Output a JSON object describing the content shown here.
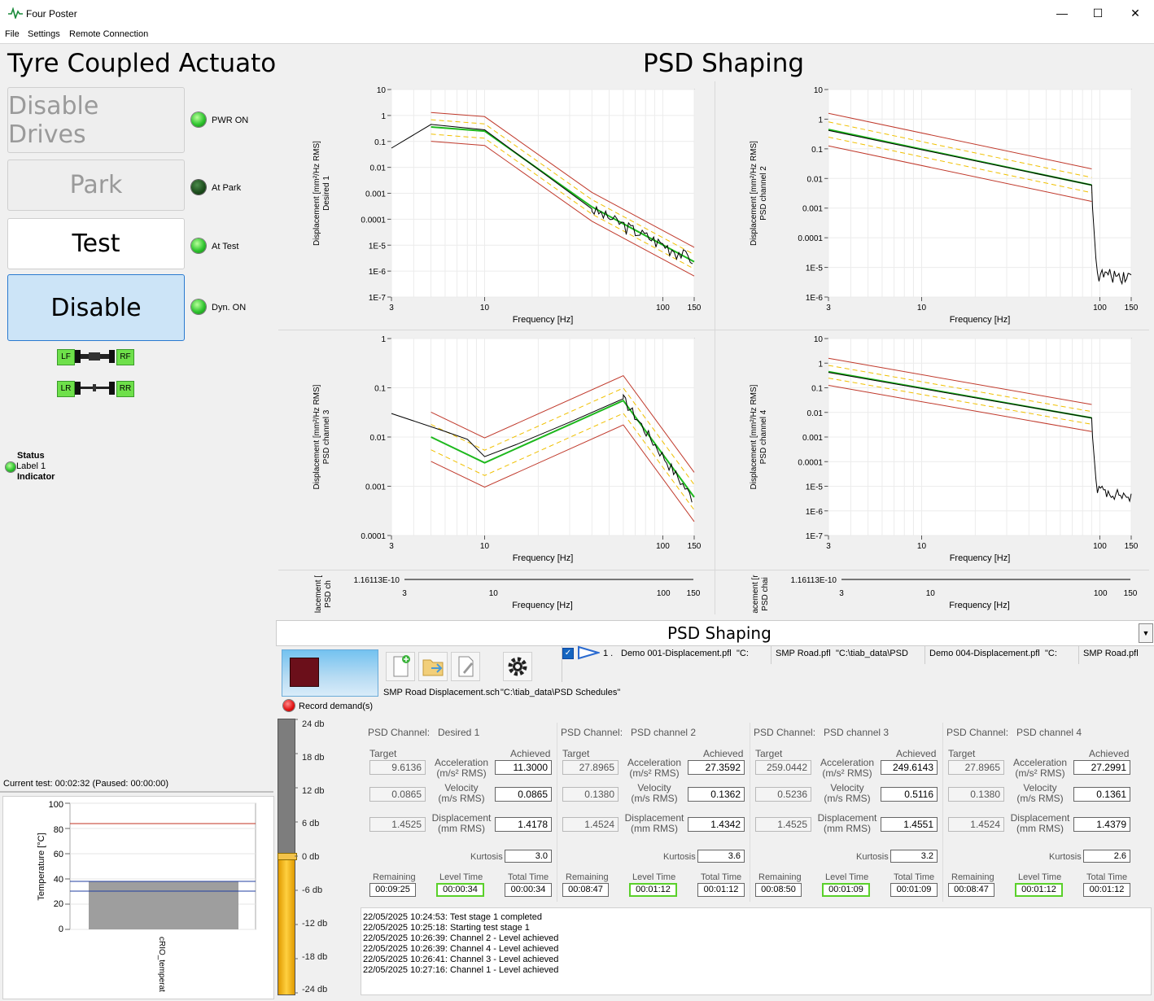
{
  "window": {
    "title": "Four Poster"
  },
  "menu": [
    "File",
    "Settings",
    "Remote Connection"
  ],
  "left": {
    "title": "Tyre Coupled Actuators",
    "buttons": [
      "Disable Drives",
      "Park",
      "Test",
      "Disable"
    ],
    "indicators": [
      {
        "label": "PWR ON",
        "state": "on"
      },
      {
        "label": "At Park",
        "state": "off"
      },
      {
        "label": "At Test",
        "state": "on"
      },
      {
        "label": "Dyn. ON",
        "state": "on"
      }
    ],
    "corners": {
      "lf": "LF",
      "rf": "RF",
      "lr": "LR",
      "rr": "RR"
    },
    "status": {
      "line1": "Status",
      "line2": "Label 1",
      "line3": "Indicator"
    },
    "current_test": "Current test: 00:02:32 (Paused: 00:00:00)",
    "temp_chart": {
      "ylabel": "Temperature [°C]",
      "xlabel": "cRIO_temperat",
      "yticks": [
        "100",
        "80",
        "60",
        "40",
        "20",
        "0"
      ]
    }
  },
  "main": {
    "title": "PSD Shaping",
    "section_title": "PSD Shaping",
    "xlabel": "Frequency [Hz]",
    "xticks": [
      "3",
      "10",
      "100",
      "150"
    ],
    "plots": [
      {
        "ylabel1": "Displacement [mm²/Hz RMS]",
        "ylabel2": "Desired 1",
        "yticks": [
          "10",
          "1",
          "0.1",
          "0.01",
          "0.001",
          "0.0001",
          "1E-5",
          "1E-6",
          "1E-7"
        ]
      },
      {
        "ylabel1": "Displacement [mm²/Hz RMS]",
        "ylabel2": "PSD channel 2",
        "yticks": [
          "10",
          "1",
          "0.1",
          "0.01",
          "0.001",
          "0.0001",
          "1E-5",
          "1E-6"
        ]
      },
      {
        "ylabel1": "Displacement [mm²/Hz RMS]",
        "ylabel2": "PSD channel 3",
        "yticks": [
          "1",
          "0.1",
          "0.01",
          "0.001",
          "0.0001"
        ]
      },
      {
        "ylabel1": "Displacement [mm²/Hz RMS]",
        "ylabel2": "PSD channel 4",
        "yticks": [
          "10",
          "1",
          "0.1",
          "0.01",
          "0.001",
          "0.0001",
          "1E-5",
          "1E-6",
          "1E-7"
        ]
      }
    ],
    "mini_plots": [
      {
        "ylabel1": "lacement [",
        "ylabel2": "PSD ch",
        "ytick": "1.16113E-10"
      },
      {
        "ylabel1": "acement [r",
        "ylabel2": "PSD chai",
        "ytick": "1.16113E-10"
      }
    ],
    "schedule": {
      "file": "SMP Road Displacement.sch",
      "path": "\"C:\\tiab_data\\PSD Schedules\"",
      "record": "Record demand(s)",
      "row": {
        "index": "1 .",
        "c1": "Demo 001-Displacement.pfl",
        "c1b": "\"C:",
        "c2": "SMP Road.pfl",
        "c2b": "\"C:\\tiab_data\\PSD",
        "c3": "Demo 004-Displacement.pfl",
        "c3b": "\"C:",
        "c4": "SMP Road.pfl"
      }
    },
    "level": [
      "24 db",
      "18 db",
      "12 db",
      "6 db",
      "0 db",
      "-6 db",
      "-12 db",
      "-18 db",
      "-24 db"
    ],
    "labels": {
      "psd_channel": "PSD Channel:",
      "target": "Target",
      "achieved": "Achieved",
      "acceleration": "Acceleration",
      "acc_unit": "(m/s² RMS)",
      "velocity": "Velocity",
      "vel_unit": "(m/s RMS)",
      "displacement": "Displacement",
      "disp_unit": "(mm RMS)",
      "kurtosis": "Kurtosis",
      "remaining": "Remaining",
      "level_time": "Level Time",
      "total_time": "Total Time"
    },
    "channels": [
      {
        "name": "Desired 1",
        "acc_target": "9.6136",
        "acc_achieved": "11.3000",
        "vel_target": "0.0865",
        "vel_achieved": "0.0865",
        "disp_target": "1.4525",
        "disp_achieved": "1.4178",
        "kurtosis": "3.0",
        "remaining": "00:09:25",
        "level_time": "00:00:34",
        "total_time": "00:00:34"
      },
      {
        "name": "PSD channel 2",
        "acc_target": "27.8965",
        "acc_achieved": "27.3592",
        "vel_target": "0.1380",
        "vel_achieved": "0.1362",
        "disp_target": "1.4524",
        "disp_achieved": "1.4342",
        "kurtosis": "3.6",
        "remaining": "00:08:47",
        "level_time": "00:01:12",
        "total_time": "00:01:12"
      },
      {
        "name": "PSD channel 3",
        "acc_target": "259.0442",
        "acc_achieved": "249.6143",
        "vel_target": "0.5236",
        "vel_achieved": "0.5116",
        "disp_target": "1.4525",
        "disp_achieved": "1.4551",
        "kurtosis": "3.2",
        "remaining": "00:08:50",
        "level_time": "00:01:09",
        "total_time": "00:01:09"
      },
      {
        "name": "PSD channel 4",
        "acc_target": "27.8965",
        "acc_achieved": "27.2991",
        "vel_target": "0.1380",
        "vel_achieved": "0.1361",
        "disp_target": "1.4524",
        "disp_achieved": "1.4379",
        "kurtosis": "2.6",
        "remaining": "00:08:47",
        "level_time": "00:01:12",
        "total_time": "00:01:12"
      }
    ],
    "log": [
      "22/05/2025 10:24:53: Test stage 1 completed",
      "22/05/2025 10:25:18: Starting test stage 1",
      "22/05/2025 10:26:39: Channel 2 - Level achieved",
      "22/05/2025 10:26:39: Channel 4 - Level achieved",
      "22/05/2025 10:26:41: Channel 3 - Level achieved",
      "22/05/2025 10:27:16: Channel 1 - Level achieved"
    ]
  }
}
